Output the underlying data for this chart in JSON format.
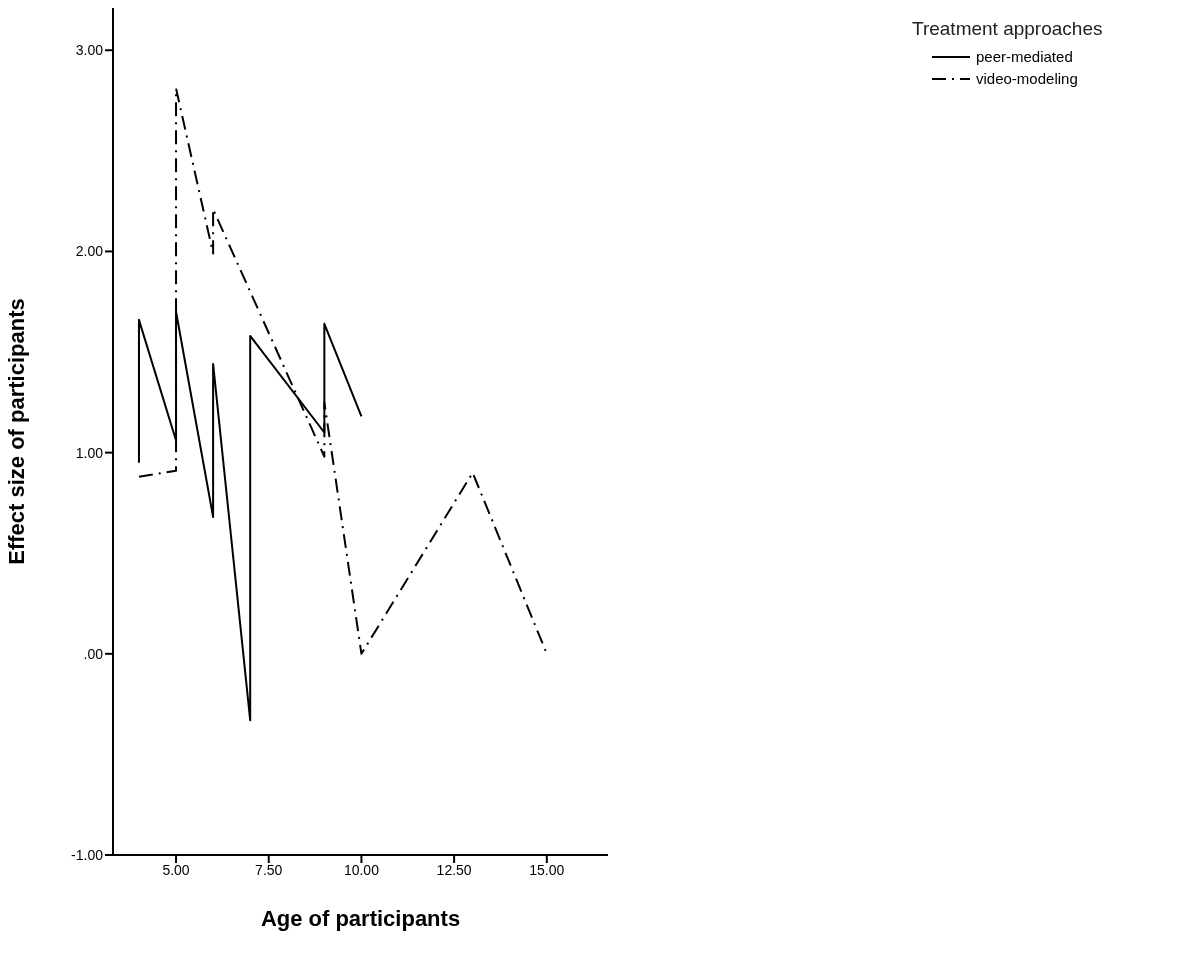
{
  "chart_data": {
    "type": "line",
    "xlabel": "Age of participants",
    "ylabel": "Effect size of participants",
    "legend_title": "Treatment approaches",
    "xlim": [
      3.3,
      16.65
    ],
    "ylim": [
      -1,
      3.21
    ],
    "xticks": [
      {
        "value": 5,
        "label": "5.00"
      },
      {
        "value": 7.5,
        "label": "7.50"
      },
      {
        "value": 10,
        "label": "10.00"
      },
      {
        "value": 12.5,
        "label": "12.50"
      },
      {
        "value": 15,
        "label": "15.00"
      }
    ],
    "yticks": [
      {
        "value": -1,
        "label": "-1.00"
      },
      {
        "value": 0,
        "label": ".00"
      },
      {
        "value": 1,
        "label": "1.00"
      },
      {
        "value": 2,
        "label": "2.00"
      },
      {
        "value": 3,
        "label": "3.00"
      }
    ],
    "grid": false,
    "legend": "top right",
    "marker": "none",
    "series": [
      {
        "name": "peer-mediated",
        "color": "#000000",
        "line_style": "solid",
        "x": [
          4,
          4,
          5,
          5,
          6,
          6,
          7,
          7,
          9,
          9,
          10
        ],
        "values": [
          0.95,
          1.66,
          1.06,
          1.7,
          0.68,
          1.44,
          -0.33,
          1.58,
          1.1,
          1.64,
          1.18
        ]
      },
      {
        "name": "video-modeling",
        "color": "#000000",
        "line_style": "dashed",
        "x": [
          4,
          5,
          5,
          6,
          6,
          9,
          9,
          10,
          13,
          15
        ],
        "values": [
          0.88,
          0.91,
          2.81,
          1.99,
          2.21,
          0.98,
          1.25,
          0,
          0.9,
          0
        ]
      }
    ]
  }
}
